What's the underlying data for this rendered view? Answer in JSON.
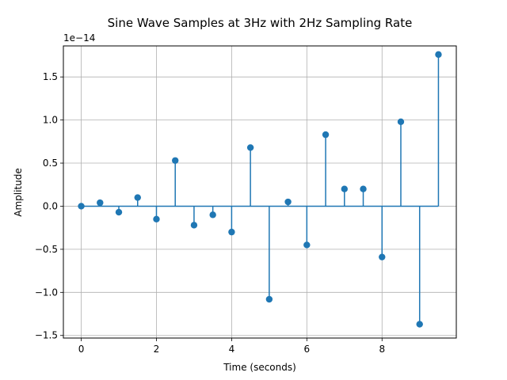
{
  "chart_data": {
    "type": "stem",
    "title": "Sine Wave Samples at 3Hz with 2Hz Sampling Rate",
    "xlabel": "Time (seconds)",
    "ylabel": "Amplitude",
    "y_offset_label": "1e−14",
    "xlim": [
      -0.475,
      9.975
    ],
    "ylim": [
      -1.53,
      1.86
    ],
    "x_ticks": [
      0,
      2,
      4,
      6,
      8
    ],
    "x_tick_labels": [
      "0",
      "2",
      "4",
      "6",
      "8"
    ],
    "y_ticks": [
      -1.5,
      -1.0,
      -0.5,
      0.0,
      0.5,
      1.0,
      1.5
    ],
    "y_tick_labels": [
      "−1.5",
      "−1.0",
      "−0.5",
      "0.0",
      "0.5",
      "1.0",
      "1.5"
    ],
    "grid": true,
    "baseline": 0,
    "color": "#1f77b4",
    "x": [
      0,
      0.5,
      1,
      1.5,
      2,
      2.5,
      3,
      3.5,
      4,
      4.5,
      5,
      5.5,
      6,
      6.5,
      7,
      7.5,
      8,
      8.5,
      9,
      9.5
    ],
    "y": [
      0.0,
      0.04,
      -0.07,
      0.1,
      -0.15,
      0.53,
      -0.22,
      -0.1,
      -0.3,
      0.68,
      -1.08,
      0.05,
      -0.45,
      0.83,
      0.2,
      0.2,
      -0.59,
      0.98,
      -1.37,
      1.76
    ]
  }
}
